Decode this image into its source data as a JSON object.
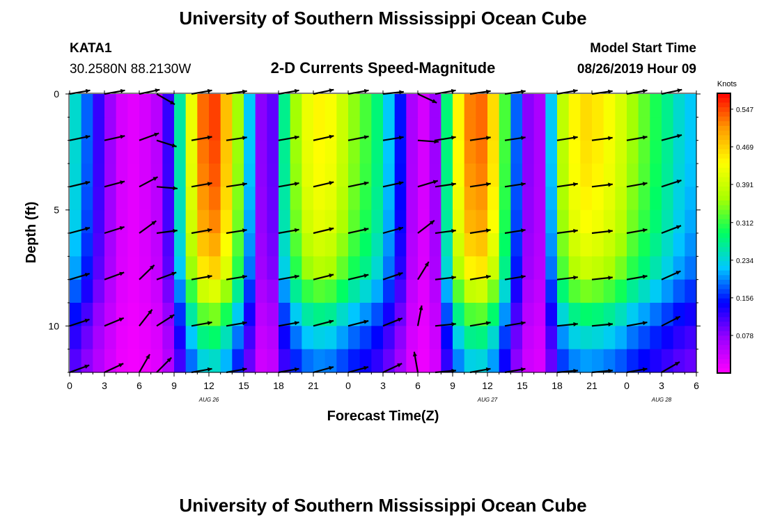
{
  "header": {
    "title": "University of Southern Mississippi Ocean Cube",
    "station_id": "KATA1",
    "station_coords": "30.2580N 88.2130W",
    "plot_title": "2-D Currents Speed-Magnitude",
    "model_start_label": "Model Start Time",
    "model_start_value": "08/26/2019 Hour 09"
  },
  "footer": {
    "title": "University of Southern Mississippi Ocean Cube"
  },
  "chart_data": {
    "type": "heatmap",
    "xlabel": "Forecast Time(Z)",
    "ylabel": "Depth (ft)",
    "x_tick_labels": [
      "0",
      "3",
      "6",
      "9",
      "12",
      "15",
      "18",
      "21",
      "0",
      "3",
      "6",
      "9",
      "12",
      "15",
      "18",
      "21",
      "0",
      "3",
      "6"
    ],
    "date_labels": [
      {
        "text": "AUG 26",
        "at_hour": 12
      },
      {
        "text": "AUG 27",
        "at_hour": 36
      },
      {
        "text": "AUG 28",
        "at_hour": 51
      }
    ],
    "xlim": [
      0,
      54
    ],
    "ylim": [
      12,
      0
    ],
    "y_tick_labels": [
      {
        "value": 0,
        "label": "0"
      },
      {
        "value": 5,
        "label": "5"
      },
      {
        "value": 10,
        "label": "10"
      }
    ],
    "colorbar": {
      "unit": "Knots",
      "range": [
        0.0,
        0.58
      ],
      "tick_labels": [
        {
          "value": 0.547,
          "label": "0.547"
        },
        {
          "value": 0.469,
          "label": "0.469"
        },
        {
          "value": 0.391,
          "label": "0.391"
        },
        {
          "value": 0.312,
          "label": "0.312"
        },
        {
          "value": 0.234,
          "label": "0.234"
        },
        {
          "value": 0.156,
          "label": "0.156"
        },
        {
          "value": 0.078,
          "label": "0.078"
        }
      ],
      "colors": [
        "#ff00ff",
        "#9a00ff",
        "#0000ff",
        "#00c8ff",
        "#00ff60",
        "#aaff00",
        "#ffff00",
        "#ff9a00",
        "#ff0000"
      ]
    },
    "depth_layers": [
      0.5,
      1.5,
      2.5,
      3.5,
      4.5,
      5.5,
      6.5,
      7.5,
      8.5,
      9.5,
      10.5,
      11.5
    ],
    "surface_speed_knots": [
      0.24,
      0.18,
      0.12,
      0.07,
      0.03,
      0.02,
      0.03,
      0.05,
      0.12,
      0.26,
      0.42,
      0.53,
      0.55,
      0.48,
      0.36,
      0.22,
      0.08,
      0.1,
      0.27,
      0.36,
      0.42,
      0.44,
      0.43,
      0.39,
      0.35,
      0.32,
      0.28,
      0.22,
      0.15,
      0.06,
      0.03,
      0.07,
      0.28,
      0.44,
      0.52,
      0.53,
      0.46,
      0.32,
      0.18,
      0.08,
      0.06,
      0.22,
      0.38,
      0.44,
      0.46,
      0.45,
      0.43,
      0.4,
      0.36,
      0.33,
      0.3,
      0.27,
      0.24,
      0.22
    ],
    "speed_depth_factor": [
      1.0,
      1.0,
      0.99,
      0.98,
      0.96,
      0.94,
      0.9,
      0.85,
      0.74,
      0.62,
      0.52,
      0.44
    ],
    "arrow_hours": [
      0,
      3,
      6,
      7.5,
      10.5,
      13.5,
      18,
      21,
      24,
      27,
      30,
      31.5,
      34.5,
      37.5,
      42,
      45,
      48,
      51
    ],
    "arrow_depths": [
      0,
      2,
      4,
      6,
      8,
      10,
      12
    ],
    "surface_direction_deg": [
      10,
      10,
      12,
      -30,
      10,
      8,
      10,
      12,
      10,
      6,
      -25,
      10,
      8,
      8,
      10,
      8,
      10,
      12
    ],
    "bottom_direction_deg": [
      20,
      25,
      60,
      45,
      10,
      10,
      10,
      15,
      15,
      25,
      100,
      5,
      10,
      10,
      5,
      5,
      10,
      30
    ]
  }
}
